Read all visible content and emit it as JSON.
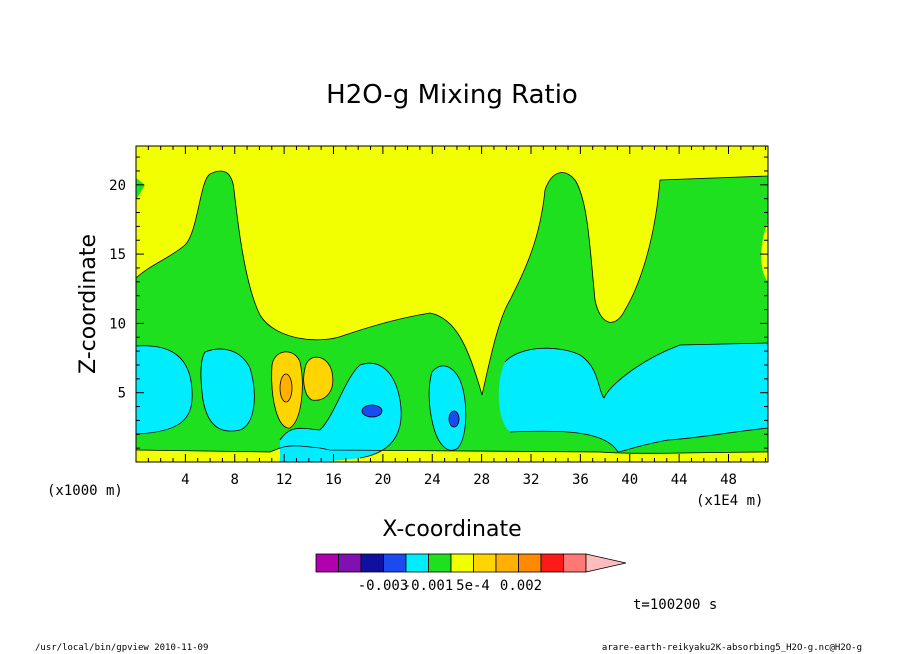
{
  "colors": {
    "magenta": "#b000b0",
    "purple": "#8010b0",
    "navy": "#1010a0",
    "blue": "#1a4af0",
    "cyan": "#00ecff",
    "green": "#1ee01e",
    "yellow": "#f2ff00",
    "gold": "#ffd500",
    "orange": "#ffb000",
    "dark_orange": "#ff8a00",
    "red": "#ff1a1a",
    "salmon": "#ff7878",
    "pink": "#ffbcbc"
  },
  "chart_data": {
    "type": "heatmap",
    "title": "H2O-g Mixing Ratio",
    "xlabel": "X-coordinate",
    "ylabel": "Z-coordinate",
    "x_unit_left": "(x1000 m)",
    "x_unit_right": "(x1E4 m)",
    "xlim": [
      0,
      51.2
    ],
    "ylim": [
      0,
      22.8
    ],
    "x_ticks": [
      4,
      8,
      12,
      16,
      20,
      24,
      28,
      32,
      36,
      40,
      44,
      48
    ],
    "y_ticks": [
      5,
      10,
      15,
      20
    ],
    "colorbar": {
      "colors": [
        "magenta",
        "purple",
        "navy",
        "blue",
        "cyan",
        "green",
        "yellow",
        "gold",
        "orange",
        "dark_orange",
        "red",
        "salmon",
        "pink"
      ],
      "labels": [
        "-0.003",
        "-0.001",
        "5e-4",
        "0.002"
      ]
    },
    "time_label": "t=100200 s"
  },
  "footer": {
    "left": "/usr/local/bin/gpview   2010-11-09",
    "right": "arare-earth-reikyaku2K-absorbing5_H2O-g.nc@H2O-g"
  }
}
